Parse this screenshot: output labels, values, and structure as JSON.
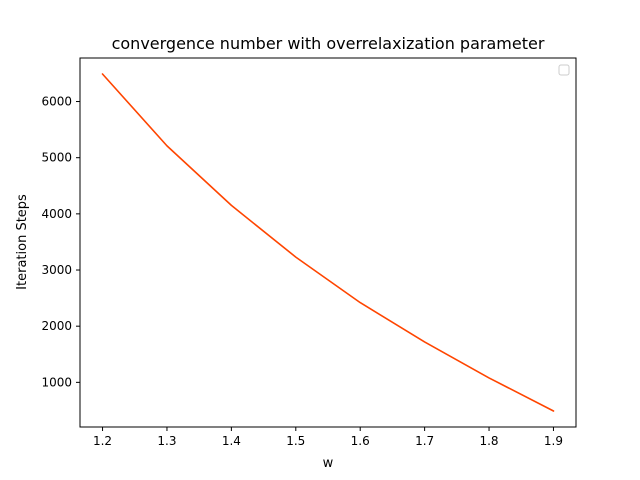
{
  "chart_data": {
    "type": "line",
    "title": "convergence number with overrelaxization parameter",
    "xlabel": "w",
    "ylabel": "Iteration Steps",
    "xlim": [
      1.165,
      1.935
    ],
    "ylim": [
      205,
      6775
    ],
    "xticks": [
      1.2,
      1.3,
      1.4,
      1.5,
      1.6,
      1.7,
      1.8,
      1.9
    ],
    "yticks": [
      1000,
      2000,
      3000,
      4000,
      5000,
      6000
    ],
    "x_tick_labels": [
      "1.2",
      "1.3",
      "1.4",
      "1.5",
      "1.6",
      "1.7",
      "1.8",
      "1.9"
    ],
    "y_tick_labels": [
      "1000",
      "2000",
      "3000",
      "4000",
      "5000",
      "6000"
    ],
    "legend": "top-right",
    "grid": false,
    "series": [
      {
        "color": "#ff4500",
        "x": [
          1.2,
          1.3,
          1.4,
          1.5,
          1.6,
          1.7,
          1.8,
          1.9
        ],
        "y": [
          6490,
          5210,
          4150,
          3230,
          2420,
          1720,
          1080,
          490
        ]
      }
    ]
  }
}
